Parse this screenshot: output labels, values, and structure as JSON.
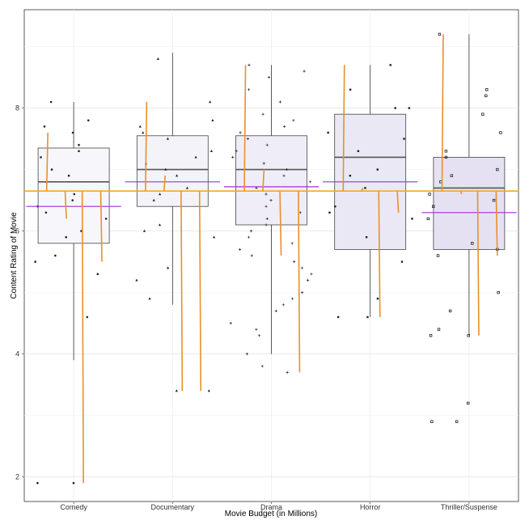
{
  "chart_data": {
    "type": "box",
    "xlabel": "Movie Budget (in Millions)",
    "ylabel": "Content Rating of Movie",
    "categories": [
      "Comedy",
      "Documentary",
      "Drama",
      "Horror",
      "Thriller/Suspense"
    ],
    "y_ticks": [
      {
        "value": 2,
        "label": "2"
      },
      {
        "value": 4,
        "label": "4"
      },
      {
        "value": 6,
        "label": "6"
      },
      {
        "value": 8,
        "label": "8"
      }
    ],
    "ylim": [
      1.6,
      9.6
    ],
    "grid": true,
    "colors": {
      "box_fills": [
        "#f7f7fb",
        "#f4f3fa",
        "#efeef8",
        "#ebe8f5",
        "#e6e1f2"
      ],
      "mean_line": "#f5a623",
      "category_line": "#9b30d9",
      "jitter_line": "#e8902a",
      "median": "#555555",
      "points": "#222222"
    },
    "overall_mean": 6.65,
    "boxes": [
      {
        "category": "Comedy",
        "q1": 5.8,
        "median": 6.8,
        "q3": 7.35,
        "whisker_low": 3.9,
        "whisker_high": 8.1,
        "mean": 6.4
      },
      {
        "category": "Documentary",
        "q1": 6.4,
        "median": 7.0,
        "q3": 7.55,
        "whisker_low": 4.8,
        "whisker_high": 8.9,
        "mean": 6.8
      },
      {
        "category": "Drama",
        "q1": 6.1,
        "median": 7.0,
        "q3": 7.55,
        "whisker_low": 4.0,
        "whisker_high": 8.7,
        "mean": 6.72
      },
      {
        "category": "Horror",
        "q1": 5.7,
        "median": 7.2,
        "q3": 7.9,
        "whisker_low": 4.6,
        "whisker_high": 8.7,
        "mean": 6.8
      },
      {
        "category": "Thriller/Suspense",
        "q1": 5.7,
        "median": 6.7,
        "q3": 7.2,
        "whisker_low": 4.3,
        "whisker_high": 9.2,
        "mean": 6.3
      }
    ],
    "points": [
      {
        "category": "Comedy",
        "values": [
          7.6,
          7.4,
          7.2,
          7.0,
          6.9,
          6.6,
          6.4,
          6.2,
          6.0,
          5.9,
          5.6,
          5.3,
          4.6,
          1.9,
          1.9,
          8.1,
          7.8,
          7.7,
          7.3,
          6.5,
          6.3,
          5.5
        ]
      },
      {
        "category": "Documentary",
        "values": [
          8.1,
          7.8,
          7.7,
          7.5,
          7.3,
          7.1,
          7.0,
          6.9,
          6.7,
          6.5,
          6.0,
          5.9,
          5.4,
          4.9,
          3.4,
          8.8,
          7.6,
          7.2,
          6.6,
          6.1,
          5.2,
          3.4
        ]
      },
      {
        "category": "Drama",
        "values": [
          8.7,
          8.6,
          8.5,
          8.3,
          8.1,
          7.9,
          7.8,
          7.7,
          7.6,
          7.5,
          7.4,
          7.3,
          7.2,
          7.1,
          7.0,
          6.9,
          6.8,
          6.7,
          6.6,
          6.5,
          6.4,
          6.3,
          6.2,
          6.1,
          6.0,
          5.9,
          5.8,
          5.7,
          5.6,
          5.5,
          5.4,
          5.3,
          5.2,
          5.0,
          4.9,
          4.8,
          4.7,
          4.5,
          4.4,
          4.3,
          4.0,
          3.8,
          3.7
        ]
      },
      {
        "category": "Horror",
        "values": [
          8.7,
          8.3,
          8.0,
          7.6,
          7.3,
          7.0,
          6.7,
          6.4,
          6.2,
          5.9,
          5.5,
          4.9,
          4.6,
          4.6,
          8.0,
          7.5,
          6.9,
          6.3
        ]
      },
      {
        "category": "Thriller/Suspense",
        "values": [
          9.2,
          8.3,
          8.2,
          7.9,
          7.6,
          7.3,
          7.0,
          6.8,
          6.6,
          6.4,
          6.2,
          5.8,
          5.7,
          5.0,
          4.4,
          4.3,
          4.3,
          4.7,
          3.2,
          2.9,
          2.9,
          7.2,
          6.9,
          6.5,
          5.6
        ]
      }
    ]
  }
}
